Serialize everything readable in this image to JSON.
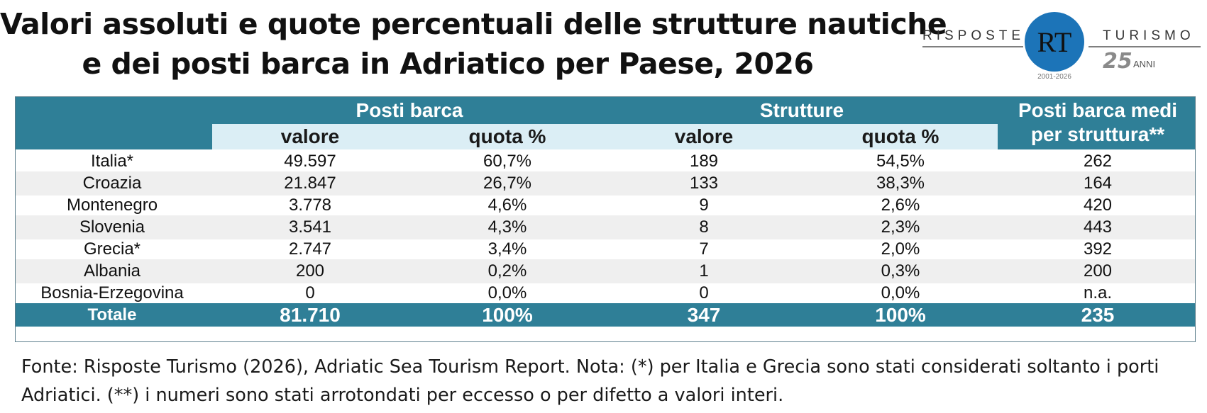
{
  "title": {
    "line1": "Valori assoluti e quote percentuali delle strutture nautiche",
    "line2": "e dei posti barca in Adriatico per Paese, 2026"
  },
  "logo": {
    "left_text": "RISPOSTE",
    "right_text": "TURISMO",
    "monogram": "RT",
    "years": "2001-2026",
    "anniversary_number": "25",
    "anniversary_word": "ANNI",
    "colors": {
      "circle": "#1c74b8",
      "text": "#333333",
      "anniversary": "#8a8a8a"
    }
  },
  "chart_data": {
    "type": "table",
    "group_headers": [
      "Posti barca",
      "Strutture",
      "Posti barca medi per struttura**"
    ],
    "group_header_lines": [
      "Posti barca medi",
      "per struttura**"
    ],
    "columns": [
      "valore",
      "quota %",
      "valore",
      "quota %"
    ],
    "rows": [
      {
        "paese": "Italia*",
        "posti_valore": "49.597",
        "posti_quota": "60,7%",
        "strutture_valore": "189",
        "strutture_quota": "54,5%",
        "medi": "262"
      },
      {
        "paese": "Croazia",
        "posti_valore": "21.847",
        "posti_quota": "26,7%",
        "strutture_valore": "133",
        "strutture_quota": "38,3%",
        "medi": "164"
      },
      {
        "paese": "Montenegro",
        "posti_valore": "3.778",
        "posti_quota": "4,6%",
        "strutture_valore": "9",
        "strutture_quota": "2,6%",
        "medi": "420"
      },
      {
        "paese": "Slovenia",
        "posti_valore": "3.541",
        "posti_quota": "4,3%",
        "strutture_valore": "8",
        "strutture_quota": "2,3%",
        "medi": "443"
      },
      {
        "paese": "Grecia*",
        "posti_valore": "2.747",
        "posti_quota": "3,4%",
        "strutture_valore": "7",
        "strutture_quota": "2,0%",
        "medi": "392"
      },
      {
        "paese": "Albania",
        "posti_valore": "200",
        "posti_quota": "0,2%",
        "strutture_valore": "1",
        "strutture_quota": "0,3%",
        "medi": "200"
      },
      {
        "paese": "Bosnia-Erzegovina",
        "posti_valore": "0",
        "posti_quota": "0,0%",
        "strutture_valore": "0",
        "strutture_quota": "0,0%",
        "medi": "n.a."
      }
    ],
    "total": {
      "paese": "Totale",
      "posti_valore": "81.710",
      "posti_quota": "100%",
      "strutture_valore": "347",
      "strutture_quota": "100%",
      "medi": "235"
    },
    "colors": {
      "header": "#2f7f97",
      "subheader": "#dbeef5",
      "stripe": "#efefef"
    }
  },
  "footnote": {
    "line1": "Fonte: Risposte Turismo (2026), Adriatic Sea Tourism Report. Nota: (*) per Italia e Grecia sono stati considerati soltanto i porti",
    "line2": "Adriatici. (**) i numeri sono stati arrotondati per eccesso o per difetto a valori interi."
  }
}
